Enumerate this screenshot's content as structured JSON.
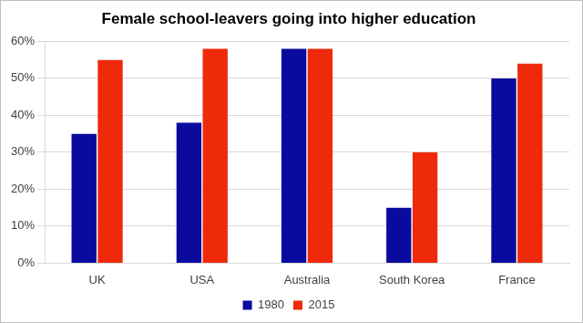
{
  "chart_data": {
    "type": "bar",
    "title": "Female school-leavers going into higher education",
    "categories": [
      "UK",
      "USA",
      "Australia",
      "South Korea",
      "France"
    ],
    "series": [
      {
        "name": "1980",
        "color": "#0a0a9e",
        "values": [
          35,
          38,
          58,
          15,
          50
        ]
      },
      {
        "name": "2015",
        "color": "#ee2a0a",
        "values": [
          55,
          58,
          58,
          30,
          54
        ]
      }
    ],
    "ylim": [
      0,
      60
    ],
    "yticks": [
      {
        "value": 0,
        "label": "0%"
      },
      {
        "value": 10,
        "label": "10%"
      },
      {
        "value": 20,
        "label": "20%"
      },
      {
        "value": 30,
        "label": "30%"
      },
      {
        "value": 40,
        "label": "40%"
      },
      {
        "value": 50,
        "label": "50%"
      },
      {
        "value": 60,
        "label": "60%"
      }
    ],
    "grid": true,
    "legend": "bottom"
  }
}
